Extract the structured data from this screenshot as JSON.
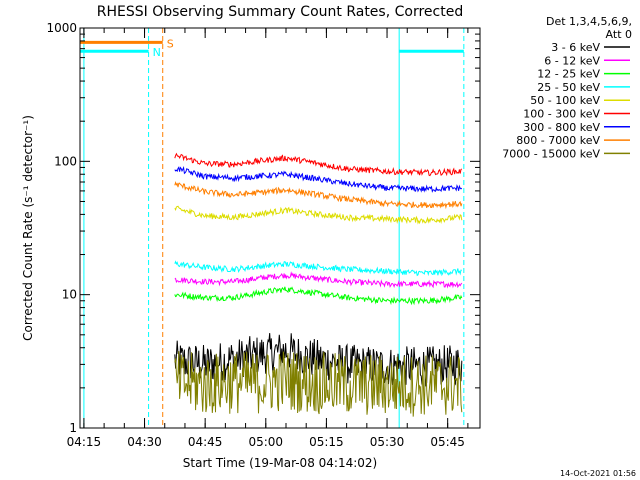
{
  "chart_data": {
    "type": "line",
    "title": "RHESSI Observing Summary Count Rates, Corrected",
    "xlabel": "Start Time (19-Mar-08 04:14:02)",
    "ylabel": "Corrected Count Rate (s⁻¹ detector⁻¹)",
    "yscale": "log",
    "ylim": [
      1,
      1000
    ],
    "xlim": [
      "04:14:02",
      "05:53:00"
    ],
    "x_ticks": [
      "04:15",
      "04:30",
      "04:45",
      "05:00",
      "05:15",
      "05:30",
      "05:45"
    ],
    "y_ticks": [
      "1",
      "10",
      "100",
      "1000"
    ],
    "legend_position": "top-right",
    "legend_header": [
      "Det 1,3,4,5,6,9,",
      "Att 0"
    ],
    "data_start": "04:37:30",
    "data_end": "05:48:30",
    "series": [
      {
        "name": "3 - 6 keV",
        "color": "#000000",
        "x": [
          "04:38",
          "04:45",
          "04:52",
          "05:00",
          "05:05",
          "05:10",
          "05:20",
          "05:30",
          "05:40",
          "05:48"
        ],
        "y": [
          3.2,
          3.0,
          3.3,
          3.6,
          3.8,
          3.4,
          3.0,
          2.9,
          2.9,
          3.0
        ]
      },
      {
        "name": "6 - 12 keV",
        "color": "#ff00ff",
        "x": [
          "04:38",
          "04:45",
          "04:52",
          "05:00",
          "05:05",
          "05:10",
          "05:20",
          "05:30",
          "05:40",
          "05:48"
        ],
        "y": [
          13,
          12.5,
          12.5,
          13.5,
          14,
          13.5,
          12.5,
          12,
          12,
          12
        ]
      },
      {
        "name": "12 - 25 keV",
        "color": "#00ff00",
        "x": [
          "04:38",
          "04:45",
          "04:52",
          "05:00",
          "05:05",
          "05:10",
          "05:20",
          "05:30",
          "05:40",
          "05:48"
        ],
        "y": [
          10,
          9.5,
          9.5,
          10.5,
          11,
          10.5,
          9.5,
          9,
          9,
          9.5
        ]
      },
      {
        "name": "25 - 50 keV",
        "color": "#00ffff",
        "x": [
          "04:38",
          "04:45",
          "04:52",
          "05:00",
          "05:05",
          "05:10",
          "05:20",
          "05:30",
          "05:40",
          "05:48"
        ],
        "y": [
          17,
          16,
          15.5,
          16.5,
          17,
          16.5,
          15.5,
          15,
          14.5,
          15
        ]
      },
      {
        "name": "50 - 100 keV",
        "color": "#dddd00",
        "x": [
          "04:38",
          "04:45",
          "04:52",
          "05:00",
          "05:05",
          "05:10",
          "05:20",
          "05:30",
          "05:40",
          "05:48"
        ],
        "y": [
          44,
          39,
          38,
          41,
          43,
          41,
          38,
          37,
          36,
          38
        ]
      },
      {
        "name": "100 - 300 keV",
        "color": "#ff0000",
        "x": [
          "04:38",
          "04:45",
          "04:52",
          "05:00",
          "05:05",
          "05:10",
          "05:20",
          "05:30",
          "05:40",
          "05:48"
        ],
        "y": [
          110,
          96,
          95,
          102,
          106,
          100,
          88,
          84,
          82,
          84
        ]
      },
      {
        "name": "300 - 800 keV",
        "color": "#0000ff",
        "x": [
          "04:38",
          "04:45",
          "04:52",
          "05:00",
          "05:05",
          "05:10",
          "05:20",
          "05:30",
          "05:40",
          "05:48"
        ],
        "y": [
          88,
          77,
          75,
          78,
          80,
          76,
          68,
          63,
          62,
          63
        ]
      },
      {
        "name": "800 - 7000 keV",
        "color": "#ff7f00",
        "x": [
          "04:38",
          "04:45",
          "04:52",
          "05:00",
          "05:05",
          "05:10",
          "05:20",
          "05:30",
          "05:40",
          "05:48"
        ],
        "y": [
          67,
          59,
          56,
          59,
          61,
          58,
          52,
          48,
          47,
          48
        ]
      },
      {
        "name": "7000 - 15000 keV",
        "color": "#808000",
        "x": [
          "04:38",
          "04:45",
          "04:52",
          "05:00",
          "05:05",
          "05:10",
          "05:20",
          "05:30",
          "05:40",
          "05:48"
        ],
        "y": [
          2.2,
          2.1,
          2.2,
          2.2,
          2.3,
          2.2,
          2.1,
          2.1,
          2.1,
          2.1
        ]
      }
    ],
    "flags": [
      {
        "label": "S",
        "color": "#ff7f00",
        "level": 780,
        "x_start": "04:14:02",
        "x_end": "04:34:30"
      },
      {
        "label": "N",
        "color": "#00ffff",
        "level": 670,
        "x_start": "04:14:02",
        "x_end": "04:31:00",
        "x_start2": "05:33:00",
        "x_end2": "05:49:00"
      }
    ],
    "markers": [
      {
        "color": "#00ffff",
        "style": "solid",
        "x": "04:15:00"
      },
      {
        "color": "#00ffff",
        "style": "dashed",
        "x": "04:31:00"
      },
      {
        "color": "#ff7f00",
        "style": "dashed",
        "x": "04:34:30"
      },
      {
        "color": "#00ffff",
        "style": "solid",
        "x": "05:33:00"
      },
      {
        "color": "#00ffff",
        "style": "dashed",
        "x": "05:49:00"
      }
    ]
  },
  "footer_timestamp": "14-Oct-2021 01:56"
}
